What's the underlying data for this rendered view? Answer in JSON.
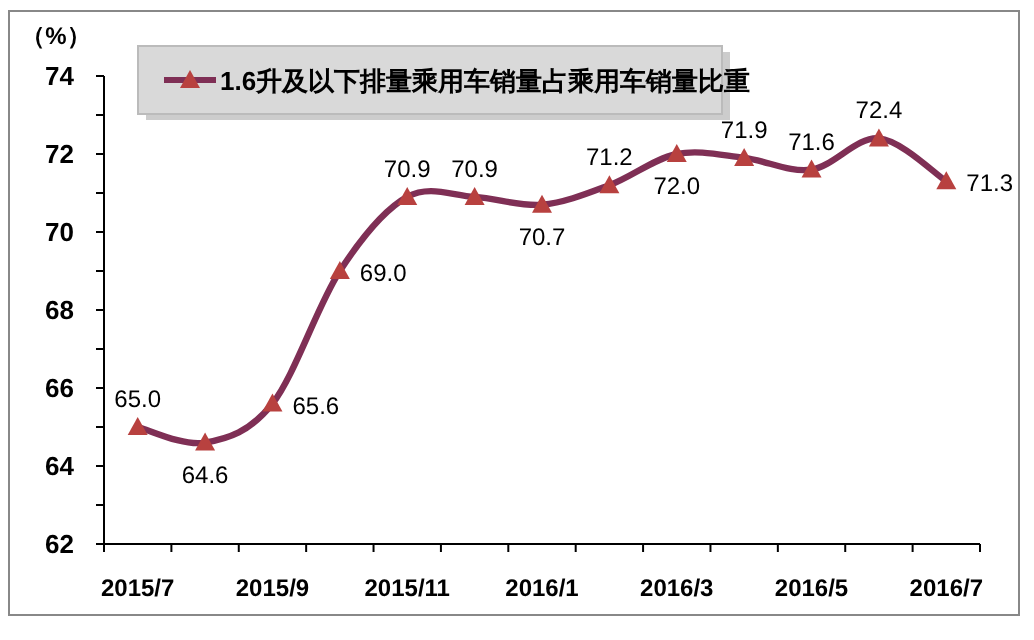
{
  "chart_data": {
    "type": "line",
    "ylabel": "（%）",
    "categories": [
      "2015/7",
      null,
      "2015/9",
      null,
      "2015/11",
      null,
      "2016/1",
      null,
      "2016/3",
      null,
      "2016/5",
      null,
      "2016/7"
    ],
    "series": [
      {
        "name": "1.6升及以下排量乘用车销量占乘用车销量比重",
        "color": "#7f2f55",
        "values": [
          65.0,
          64.6,
          65.6,
          69.0,
          70.9,
          70.9,
          70.7,
          71.2,
          72.0,
          71.9,
          71.6,
          72.4,
          71.3
        ],
        "value_labels": [
          "65.0",
          "64.6",
          "65.6",
          "69.0",
          "70.9",
          "70.9",
          "70.7",
          "71.2",
          "72.0",
          "71.9",
          "71.6",
          "72.4",
          "71.3"
        ]
      }
    ],
    "ylim": [
      62,
      74
    ],
    "yticks": [
      62,
      {
        "value": 63,
        "label": null
      },
      64,
      {
        "value": 65,
        "label": null
      },
      66,
      {
        "value": 67,
        "label": null
      },
      68,
      {
        "value": 69,
        "label": null
      },
      70,
      {
        "value": 71,
        "label": null
      },
      72,
      {
        "value": 73,
        "label": null
      },
      74
    ],
    "grid": false,
    "legend": "top",
    "marker": "triangle",
    "line_style": "solid"
  }
}
